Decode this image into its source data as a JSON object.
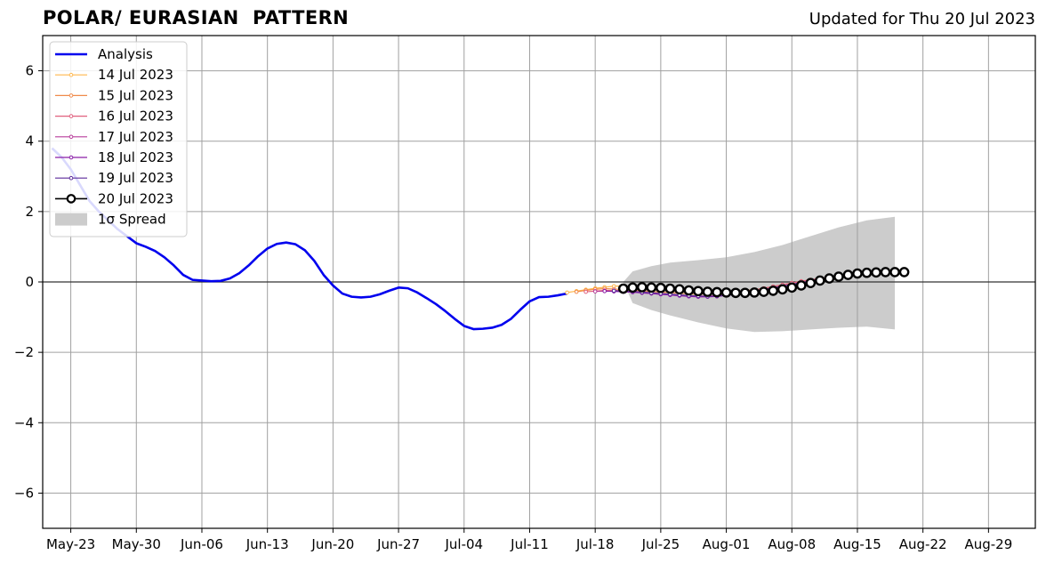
{
  "header": {
    "title": "POLAR/ EURASIAN  PATTERN",
    "updated": "Updated for Thu 20 Jul 2023"
  },
  "colors": {
    "analysis": "#0000ee",
    "spread": "#cccccc",
    "grid": "#a0a0a0",
    "fc_14jul": "#ffb74d",
    "fc_15jul": "#f08a4b",
    "fc_16jul": "#e0607e",
    "fc_17jul": "#b83d9b",
    "fc_18jul": "#8a1fa8",
    "fc_19jul": "#5b2a9a",
    "fc_20jul": "#000000"
  },
  "chart_data": {
    "type": "line",
    "title": "POLAR/ EURASIAN  PATTERN",
    "subtitle": "Updated for Thu 20 Jul 2023",
    "xlabel": "",
    "ylabel": "",
    "x_type": "date",
    "xlim": [
      "2023-05-20",
      "2023-09-03"
    ],
    "ylim": [
      -7,
      7
    ],
    "grid": true,
    "legend_position": "top-left",
    "x_ticks": [
      {
        "date": "2023-05-23",
        "label": "May-23"
      },
      {
        "date": "2023-05-30",
        "label": "May-30"
      },
      {
        "date": "2023-06-06",
        "label": "Jun-06"
      },
      {
        "date": "2023-06-13",
        "label": "Jun-13"
      },
      {
        "date": "2023-06-20",
        "label": "Jun-20"
      },
      {
        "date": "2023-06-27",
        "label": "Jun-27"
      },
      {
        "date": "2023-07-04",
        "label": "Jul-04"
      },
      {
        "date": "2023-07-11",
        "label": "Jul-11"
      },
      {
        "date": "2023-07-18",
        "label": "Jul-18"
      },
      {
        "date": "2023-07-25",
        "label": "Jul-25"
      },
      {
        "date": "2023-08-01",
        "label": "Aug-01"
      },
      {
        "date": "2023-08-08",
        "label": "Aug-08"
      },
      {
        "date": "2023-08-15",
        "label": "Aug-15"
      },
      {
        "date": "2023-08-22",
        "label": "Aug-22"
      },
      {
        "date": "2023-08-29",
        "label": "Aug-29"
      }
    ],
    "y_ticks": [
      {
        "value": 6,
        "label": "6"
      },
      {
        "value": 4,
        "label": "4"
      },
      {
        "value": 2,
        "label": "2"
      },
      {
        "value": 0,
        "label": "0"
      },
      {
        "value": -2,
        "label": "−2"
      },
      {
        "value": -4,
        "label": "−4"
      },
      {
        "value": -6,
        "label": "−6"
      }
    ],
    "analysis": {
      "name": "Analysis",
      "points": [
        [
          "2023-05-21",
          3.8
        ],
        [
          "2023-05-22",
          3.55
        ],
        [
          "2023-05-23",
          3.2
        ],
        [
          "2023-05-24",
          2.75
        ],
        [
          "2023-05-25",
          2.3
        ],
        [
          "2023-05-26",
          2.0
        ],
        [
          "2023-05-27",
          1.75
        ],
        [
          "2023-05-28",
          1.5
        ],
        [
          "2023-05-29",
          1.3
        ],
        [
          "2023-05-30",
          1.1
        ],
        [
          "2023-05-31",
          1.0
        ],
        [
          "2023-06-01",
          0.88
        ],
        [
          "2023-06-02",
          0.7
        ],
        [
          "2023-06-03",
          0.47
        ],
        [
          "2023-06-04",
          0.2
        ],
        [
          "2023-06-05",
          0.06
        ],
        [
          "2023-06-06",
          0.04
        ],
        [
          "2023-06-07",
          0.02
        ],
        [
          "2023-06-08",
          0.03
        ],
        [
          "2023-06-09",
          0.1
        ],
        [
          "2023-06-10",
          0.25
        ],
        [
          "2023-06-11",
          0.47
        ],
        [
          "2023-06-12",
          0.73
        ],
        [
          "2023-06-13",
          0.95
        ],
        [
          "2023-06-14",
          1.08
        ],
        [
          "2023-06-15",
          1.12
        ],
        [
          "2023-06-16",
          1.07
        ],
        [
          "2023-06-17",
          0.9
        ],
        [
          "2023-06-18",
          0.6
        ],
        [
          "2023-06-19",
          0.2
        ],
        [
          "2023-06-20",
          -0.1
        ],
        [
          "2023-06-21",
          -0.33
        ],
        [
          "2023-06-22",
          -0.42
        ],
        [
          "2023-06-23",
          -0.44
        ],
        [
          "2023-06-24",
          -0.42
        ],
        [
          "2023-06-25",
          -0.35
        ],
        [
          "2023-06-26",
          -0.25
        ],
        [
          "2023-06-27",
          -0.16
        ],
        [
          "2023-06-28",
          -0.18
        ],
        [
          "2023-06-29",
          -0.3
        ],
        [
          "2023-06-30",
          -0.46
        ],
        [
          "2023-07-01",
          -0.63
        ],
        [
          "2023-07-02",
          -0.83
        ],
        [
          "2023-07-03",
          -1.05
        ],
        [
          "2023-07-04",
          -1.25
        ],
        [
          "2023-07-05",
          -1.34
        ],
        [
          "2023-07-06",
          -1.33
        ],
        [
          "2023-07-07",
          -1.3
        ],
        [
          "2023-07-08",
          -1.22
        ],
        [
          "2023-07-09",
          -1.05
        ],
        [
          "2023-07-10",
          -0.79
        ],
        [
          "2023-07-11",
          -0.55
        ],
        [
          "2023-07-12",
          -0.43
        ],
        [
          "2023-07-13",
          -0.42
        ],
        [
          "2023-07-14",
          -0.38
        ],
        [
          "2023-07-15",
          -0.33
        ]
      ]
    },
    "forecasts": [
      {
        "name": "14 Jul 2023",
        "start": "2023-07-15",
        "values": [
          -0.3,
          -0.26,
          -0.22,
          -0.18,
          -0.15,
          -0.12,
          -0.12
        ]
      },
      {
        "name": "15 Jul 2023",
        "start": "2023-07-16",
        "values": [
          -0.28,
          -0.24,
          -0.21,
          -0.19,
          -0.2,
          -0.22,
          -0.24,
          -0.25,
          -0.27,
          -0.29,
          -0.3,
          -0.32,
          -0.34,
          -0.35,
          -0.34,
          -0.32,
          -0.3,
          -0.28,
          -0.25,
          -0.22,
          -0.18,
          -0.13,
          -0.08,
          -0.03,
          0.02,
          0.06,
          0.1,
          0.13
        ]
      },
      {
        "name": "16 Jul 2023",
        "start": "2023-07-17",
        "values": [
          -0.28,
          -0.26,
          -0.24,
          -0.24,
          -0.25,
          -0.27,
          -0.29,
          -0.31,
          -0.33,
          -0.35,
          -0.37,
          -0.39,
          -0.4,
          -0.4,
          -0.38,
          -0.35,
          -0.31,
          -0.27,
          -0.23,
          -0.18,
          -0.13,
          -0.08,
          -0.03,
          0.02,
          0.06,
          0.1,
          0.14,
          0.18
        ]
      },
      {
        "name": "17 Jul 2023",
        "start": "2023-07-18",
        "values": [
          -0.27,
          -0.26,
          -0.26,
          -0.27,
          -0.29,
          -0.31,
          -0.33,
          -0.35,
          -0.37,
          -0.39,
          -0.41,
          -0.42,
          -0.42,
          -0.41,
          -0.38,
          -0.35,
          -0.31,
          -0.27,
          -0.22,
          -0.17,
          -0.12,
          -0.07,
          -0.02,
          0.03,
          0.08,
          0.12,
          0.17
        ]
      },
      {
        "name": "18 Jul 2023",
        "start": "2023-07-19",
        "values": [
          -0.26,
          -0.27,
          -0.28,
          -0.29,
          -0.31,
          -0.33,
          -0.35,
          -0.37,
          -0.39,
          -0.41,
          -0.42,
          -0.42,
          -0.41,
          -0.38,
          -0.35,
          -0.31,
          -0.27,
          -0.22,
          -0.17,
          -0.12,
          -0.07,
          -0.02,
          0.03,
          0.08,
          0.13,
          0.18
        ]
      },
      {
        "name": "19 Jul 2023",
        "start": "2023-07-20",
        "values": [
          -0.25,
          -0.26,
          -0.27,
          -0.29,
          -0.31,
          -0.33,
          -0.35,
          -0.37,
          -0.39,
          -0.4,
          -0.41,
          -0.4,
          -0.38,
          -0.35,
          -0.31,
          -0.27,
          -0.22,
          -0.17,
          -0.12,
          -0.07,
          -0.02,
          0.03,
          0.08,
          0.13,
          0.18,
          0.22
        ]
      },
      {
        "name": "20 Jul 2023",
        "start": "2023-07-21",
        "values": [
          -0.19,
          -0.16,
          -0.15,
          -0.16,
          -0.17,
          -0.19,
          -0.21,
          -0.24,
          -0.26,
          -0.28,
          -0.29,
          -0.3,
          -0.31,
          -0.31,
          -0.3,
          -0.28,
          -0.25,
          -0.21,
          -0.16,
          -0.1,
          -0.03,
          0.04,
          0.1,
          0.15,
          0.2,
          0.24,
          0.26,
          0.27,
          0.28,
          0.28,
          0.28
        ]
      }
    ],
    "spread": {
      "name": "1σ Spread",
      "points": [
        [
          "2023-07-21",
          0.0,
          0.0
        ],
        [
          "2023-07-22",
          0.3,
          -0.6
        ],
        [
          "2023-07-24",
          0.45,
          -0.8
        ],
        [
          "2023-07-26",
          0.55,
          -0.95
        ],
        [
          "2023-07-29",
          0.62,
          -1.15
        ],
        [
          "2023-08-01",
          0.7,
          -1.32
        ],
        [
          "2023-08-04",
          0.85,
          -1.42
        ],
        [
          "2023-08-07",
          1.05,
          -1.4
        ],
        [
          "2023-08-10",
          1.3,
          -1.35
        ],
        [
          "2023-08-13",
          1.55,
          -1.3
        ],
        [
          "2023-08-16",
          1.75,
          -1.27
        ],
        [
          "2023-08-19",
          1.85,
          -1.35
        ]
      ]
    },
    "legend": [
      "Analysis",
      "14 Jul 2023",
      "15 Jul 2023",
      "16 Jul 2023",
      "17 Jul 2023",
      "18 Jul 2023",
      "19 Jul 2023",
      "20 Jul 2023",
      "1σ Spread"
    ]
  }
}
